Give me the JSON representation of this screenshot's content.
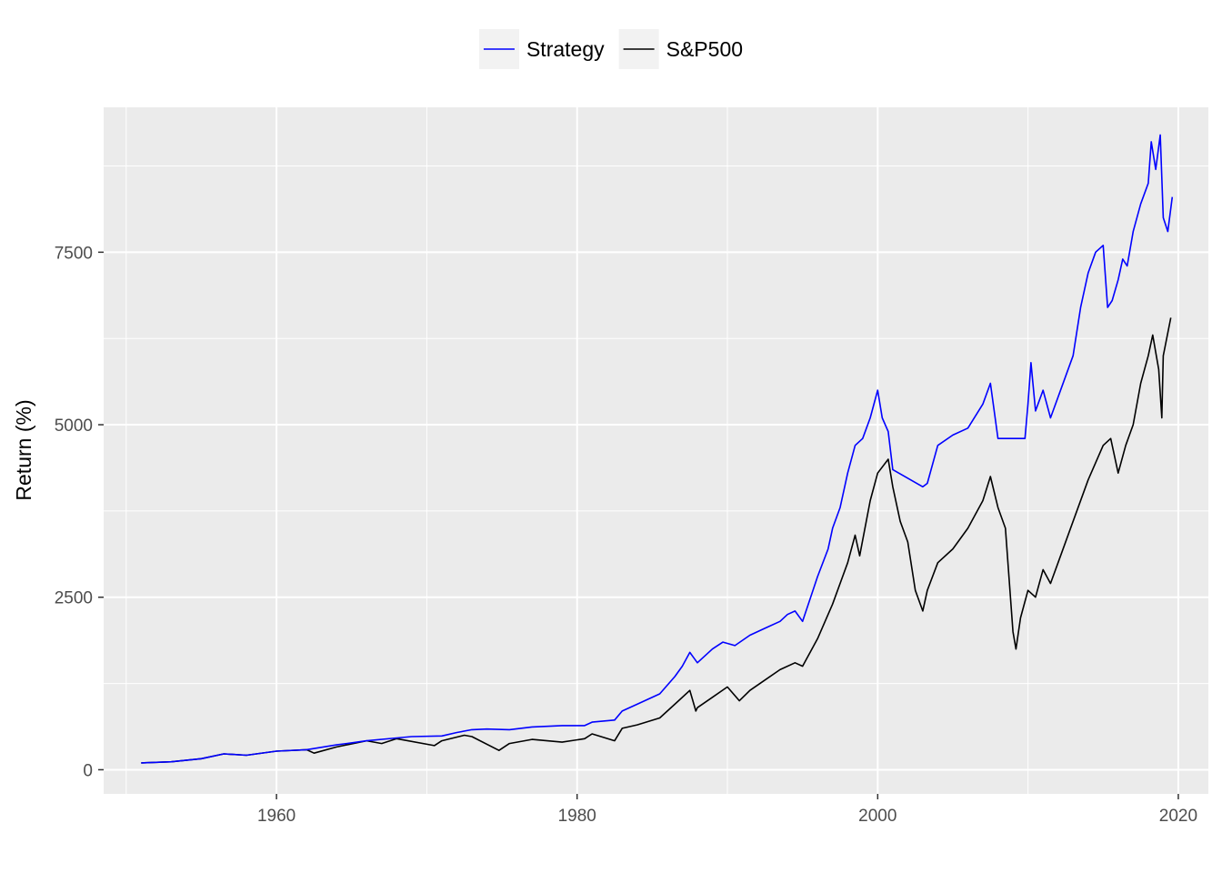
{
  "chart_data": {
    "type": "line",
    "title": "",
    "xlabel": "",
    "ylabel": "Return (%)",
    "xlim": [
      1948.5,
      2022
    ],
    "ylim": [
      -350,
      9600
    ],
    "x_ticks": [
      1960,
      1980,
      2000,
      2020
    ],
    "x_tick_labels": [
      "1960",
      "1980",
      "2000",
      "2020"
    ],
    "y_ticks": [
      0,
      2500,
      5000,
      7500
    ],
    "y_tick_labels": [
      "0",
      "2500",
      "5000",
      "7500"
    ],
    "grid": true,
    "legend_position": "top",
    "series": [
      {
        "name": "Strategy",
        "color": "#0000ff",
        "x": [
          1951.0,
          1953.0,
          1955.0,
          1956.5,
          1958.0,
          1960.0,
          1962.0,
          1964.0,
          1966.0,
          1968.0,
          1969.0,
          1971.0,
          1972.0,
          1973.0,
          1974.0,
          1975.5,
          1977.0,
          1979.0,
          1980.5,
          1981.0,
          1982.5,
          1983.0,
          1984.0,
          1985.5,
          1986.5,
          1987.0,
          1987.5,
          1988.0,
          1989.0,
          1989.7,
          1990.5,
          1991.5,
          1992.5,
          1993.5,
          1994.0,
          1994.5,
          1995.0,
          1996.0,
          1996.7,
          1997.0,
          1997.5,
          1998.0,
          1998.5,
          1999.0,
          1999.5,
          2000.0,
          2000.3,
          2000.7,
          2001.0,
          2003.0,
          2003.3,
          2004.0,
          2005.0,
          2006.0,
          2007.0,
          2007.5,
          2008.0,
          2009.8,
          2010.0,
          2010.2,
          2010.5,
          2011.0,
          2011.5,
          2012.0,
          2013.0,
          2013.5,
          2014.0,
          2014.5,
          2015.0,
          2015.3,
          2015.6,
          2016.0,
          2016.3,
          2016.6,
          2017.0,
          2017.5,
          2018.0,
          2018.2,
          2018.5,
          2018.8,
          2019.0,
          2019.3,
          2019.6
        ],
        "values": [
          100,
          115,
          160,
          230,
          210,
          270,
          290,
          360,
          420,
          460,
          480,
          490,
          540,
          580,
          590,
          580,
          620,
          640,
          640,
          690,
          720,
          850,
          950,
          1100,
          1350,
          1500,
          1700,
          1550,
          1750,
          1850,
          1800,
          1950,
          2050,
          2150,
          2250,
          2300,
          2150,
          2800,
          3200,
          3500,
          3800,
          4300,
          4700,
          4800,
          5100,
          5500,
          5100,
          4900,
          4350,
          4100,
          4150,
          4700,
          4850,
          4950,
          5300,
          5600,
          4800,
          4800,
          5300,
          5900,
          5200,
          5500,
          5100,
          5400,
          6000,
          6700,
          7200,
          7500,
          7600,
          6700,
          6800,
          7100,
          7400,
          7300,
          7800,
          8200,
          8500,
          9100,
          8700,
          9200,
          8000,
          7800,
          8300
        ]
      },
      {
        "name": "S&P500",
        "color": "#000000",
        "x": [
          1951.0,
          1953.0,
          1955.0,
          1956.5,
          1958.0,
          1960.0,
          1962.0,
          1962.5,
          1964.0,
          1966.0,
          1967.0,
          1968.0,
          1970.5,
          1971.0,
          1972.5,
          1973.0,
          1974.8,
          1975.5,
          1977.0,
          1979.0,
          1980.5,
          1981.0,
          1982.5,
          1983.0,
          1984.0,
          1985.5,
          1986.5,
          1987.5,
          1987.9,
          1988.0,
          1989.0,
          1990.0,
          1990.8,
          1991.5,
          1992.5,
          1993.5,
          1994.5,
          1995.0,
          1996.0,
          1997.0,
          1998.0,
          1998.5,
          1998.8,
          1999.5,
          2000.0,
          2000.7,
          2001.0,
          2001.5,
          2002.0,
          2002.5,
          2003.0,
          2003.3,
          2004.0,
          2005.0,
          2006.0,
          2007.0,
          2007.5,
          2008.0,
          2008.5,
          2009.0,
          2009.2,
          2009.5,
          2010.0,
          2010.5,
          2011.0,
          2011.5,
          2012.0,
          2013.0,
          2014.0,
          2015.0,
          2015.5,
          2016.0,
          2016.5,
          2017.0,
          2017.5,
          2018.0,
          2018.3,
          2018.7,
          2018.9,
          2019.0,
          2019.5
        ],
        "values": [
          100,
          115,
          160,
          230,
          210,
          270,
          290,
          240,
          330,
          420,
          380,
          450,
          350,
          420,
          500,
          480,
          280,
          380,
          440,
          400,
          450,
          520,
          420,
          600,
          650,
          750,
          950,
          1150,
          850,
          900,
          1050,
          1200,
          1000,
          1150,
          1300,
          1450,
          1550,
          1500,
          1900,
          2400,
          3000,
          3400,
          3100,
          3900,
          4300,
          4500,
          4100,
          3600,
          3300,
          2600,
          2300,
          2600,
          3000,
          3200,
          3500,
          3900,
          4250,
          3800,
          3500,
          2000,
          1750,
          2200,
          2600,
          2500,
          2900,
          2700,
          3000,
          3600,
          4200,
          4700,
          4800,
          4300,
          4700,
          5000,
          5600,
          6000,
          6300,
          5800,
          5100,
          6000,
          6550
        ]
      }
    ]
  }
}
